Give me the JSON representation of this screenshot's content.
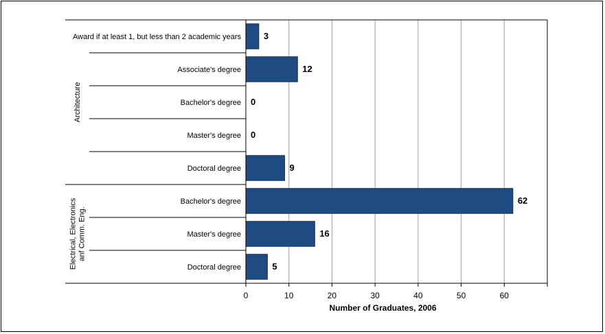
{
  "chart_data": {
    "type": "bar",
    "orientation": "horizontal",
    "xlabel": "Number of Graduates, 2006",
    "xlim": [
      0,
      70
    ],
    "xticks": [
      0,
      10,
      20,
      30,
      40,
      50,
      60
    ],
    "grid": true,
    "colors": {
      "bar": "#1e4b82",
      "grid": "#a0a0a0",
      "axis": "#000000"
    },
    "groups": [
      {
        "name": "Architecture",
        "items": [
          {
            "category": "Award if at least 1, but less than 2 academic years",
            "value": 3
          },
          {
            "category": "Associate's degree",
            "value": 12
          },
          {
            "category": "Bachelor's degree",
            "value": 0
          },
          {
            "category": "Master's degree",
            "value": 0
          },
          {
            "category": "Doctoral degree",
            "value": 9
          }
        ]
      },
      {
        "name": "Electrical, Electronics anf Comm. Eng.",
        "name_lines": [
          "Electrical, Electronics",
          "anf Comm. Eng."
        ],
        "items": [
          {
            "category": "Bachelor's degree",
            "value": 62
          },
          {
            "category": "Master's degree",
            "value": 16
          },
          {
            "category": "Doctoral degree",
            "value": 5
          }
        ]
      }
    ]
  }
}
